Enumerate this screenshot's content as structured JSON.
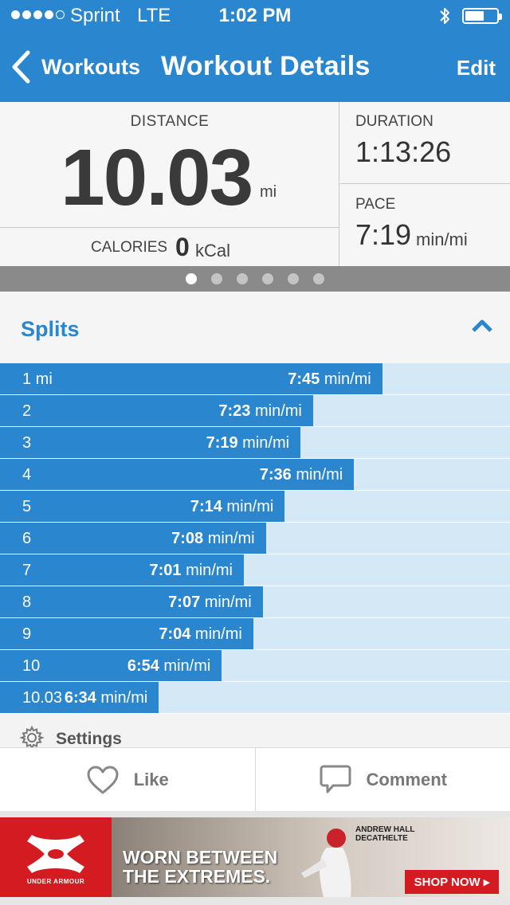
{
  "status_bar": {
    "carrier": "Sprint",
    "network": "LTE",
    "time": "1:02 PM",
    "signal_bars": 4,
    "signal_total": 5,
    "battery_level": 0.6
  },
  "nav": {
    "back_label": "Workouts",
    "title": "Workout Details",
    "edit_label": "Edit"
  },
  "stats": {
    "distance_label": "DISTANCE",
    "distance_value": "10.03",
    "distance_unit": "mi",
    "calories_label": "CALORIES",
    "calories_value": "0",
    "calories_unit": "kCal",
    "duration_label": "DURATION",
    "duration_value": "1:13:26",
    "pace_label": "PACE",
    "pace_value": "7:19",
    "pace_unit": "min/mi"
  },
  "pager": {
    "count": 6,
    "active_index": 0
  },
  "splits": {
    "title": "Splits",
    "unit": "min/mi",
    "rows": [
      {
        "label": "1 mi",
        "pace": "7:45",
        "seconds": 465
      },
      {
        "label": "2",
        "pace": "7:23",
        "seconds": 443
      },
      {
        "label": "3",
        "pace": "7:19",
        "seconds": 439
      },
      {
        "label": "4",
        "pace": "7:36",
        "seconds": 456
      },
      {
        "label": "5",
        "pace": "7:14",
        "seconds": 434
      },
      {
        "label": "6",
        "pace": "7:08",
        "seconds": 428
      },
      {
        "label": "7",
        "pace": "7:01",
        "seconds": 421
      },
      {
        "label": "8",
        "pace": "7:07",
        "seconds": 427
      },
      {
        "label": "9",
        "pace": "7:04",
        "seconds": 424
      },
      {
        "label": "10",
        "pace": "6:54",
        "seconds": 414
      },
      {
        "label": "10.03",
        "pace": "6:34",
        "seconds": 394
      }
    ]
  },
  "settings_label": "Settings",
  "actions": {
    "like_label": "Like",
    "comment_label": "Comment"
  },
  "ad": {
    "brand": "UNDER ARMOUR",
    "headline_line1": "WORN BETWEEN",
    "headline_line2": "THE EXTREMES.",
    "athlete_line1": "ANDREW HALL",
    "athlete_line2": "DECATHELTE",
    "cta": "SHOP NOW ▸"
  },
  "colors": {
    "primary_blue": "#2a87cf",
    "split_track": "#d4e8f6",
    "ad_red": "#d31b21"
  }
}
